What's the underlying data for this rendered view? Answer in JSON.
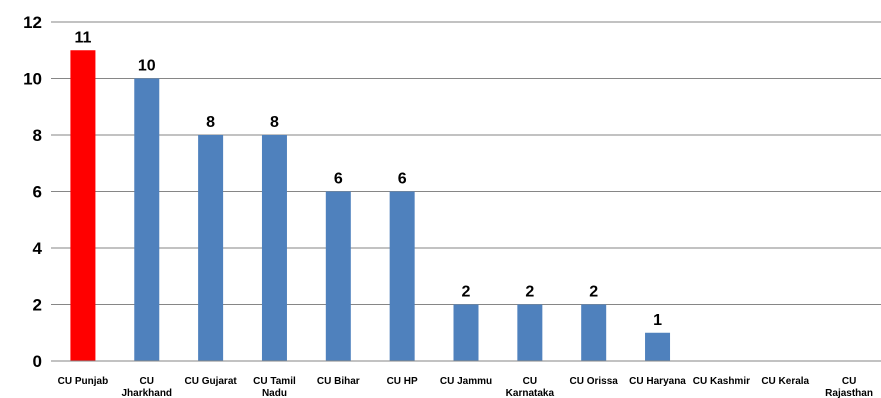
{
  "chart_data": {
    "type": "bar",
    "categories": [
      [
        "CU Punjab"
      ],
      [
        "CU",
        "Jharkhand"
      ],
      [
        "CU Gujarat"
      ],
      [
        "CU Tamil",
        "Nadu"
      ],
      [
        "CU Bihar"
      ],
      [
        "CU HP"
      ],
      [
        "CU Jammu"
      ],
      [
        "CU",
        "Karnataka"
      ],
      [
        "CU Orissa"
      ],
      [
        "CU Haryana"
      ],
      [
        "CU Kashmir"
      ],
      [
        "CU Kerala"
      ],
      [
        "CU",
        "Rajasthan"
      ]
    ],
    "values": [
      11,
      10,
      8,
      8,
      6,
      6,
      2,
      2,
      2,
      1,
      0,
      0,
      0
    ],
    "data_labels": [
      "11",
      "10",
      "8",
      "8",
      "6",
      "6",
      "2",
      "2",
      "2",
      "1",
      "",
      "",
      ""
    ],
    "ylim": [
      0,
      12
    ],
    "yticks": [
      0,
      2,
      4,
      6,
      8,
      10,
      12
    ],
    "grid": true,
    "legend": "none",
    "colors": {
      "default": "#4F81BD",
      "highlight": "#FF0000",
      "highlight_category": "CU Punjab",
      "gridline": "#868686",
      "axis": "#868686"
    }
  }
}
